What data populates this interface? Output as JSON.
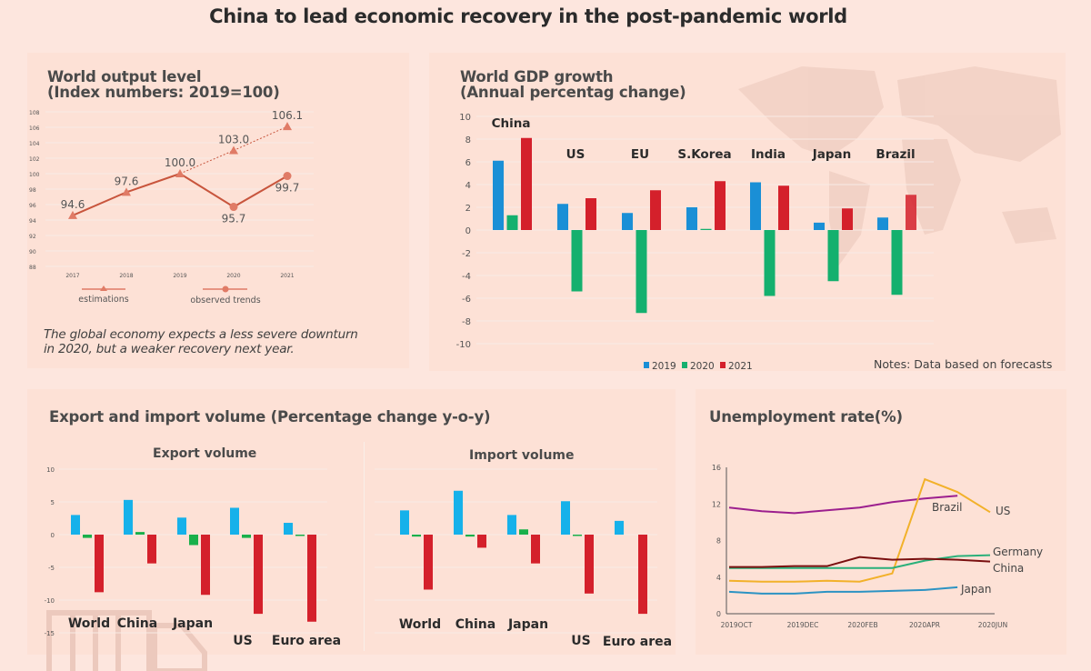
{
  "title": "China to lead economic recovery in the post-pandemic world",
  "colors": {
    "background": "#fde6de",
    "panel": "#fde1d6",
    "output_line": "#c8553d",
    "output_marker": "#e07b66",
    "c2019": "#1a8fd6",
    "c2020": "#14b06e",
    "c2021": "#d4202b",
    "trade_2019": "#16b1ea",
    "trade_2020": "#19b04b",
    "trade_2021": "#d4202b",
    "brazil": "#9c1f8e",
    "us": "#f2b12a",
    "germany": "#2ab07a",
    "china": "#7a0f0f",
    "japan": "#2c93c3"
  },
  "panels": {
    "output": {
      "title_line1": "World output level",
      "title_line2": "(Index numbers: 2019=100)",
      "note_line1": "The global economy expects a less severe downturn",
      "note_line2": "in 2020, but a weaker recovery next year."
    },
    "gdp": {
      "title_line1": "World GDP growth",
      "title_line2": "(Annual percentag change)",
      "note": "Notes: Data based on forecasts"
    },
    "trade": {
      "title": "Export and import volume (Percentage change y-o-y)",
      "export_title": "Export volume",
      "import_title": "Import volume"
    },
    "unemployment": {
      "title": "Unemployment rate(%)"
    }
  },
  "chart_data": [
    {
      "id": "world-output",
      "type": "line",
      "title": "World output level (Index numbers: 2019=100)",
      "x": [
        "2017",
        "2018",
        "2019",
        "2020",
        "2021"
      ],
      "ylim": [
        88,
        108
      ],
      "yticks": [
        88,
        90,
        92,
        94,
        96,
        98,
        100,
        102,
        104,
        106,
        108
      ],
      "grid": true,
      "series": [
        {
          "name": "estimations",
          "marker": "triangle",
          "values": [
            94.6,
            97.6,
            100.0,
            103.0,
            106.1
          ],
          "labels": [
            "94.6",
            "97.6",
            "100.0",
            "103.0",
            "106.1"
          ]
        },
        {
          "name": "observed trends",
          "marker": "circle",
          "values": [
            null,
            null,
            100.0,
            95.7,
            99.7
          ],
          "labels": [
            "",
            "",
            "",
            "95.7",
            "99.7"
          ]
        }
      ],
      "legend": [
        "estimations",
        "observed trends"
      ],
      "legend_position": "bottom"
    },
    {
      "id": "gdp-growth",
      "type": "bar",
      "title": "World GDP growth (Annual percentag change)",
      "categories": [
        "China",
        "US",
        "EU",
        "S.Korea",
        "India",
        "Japan",
        "Brazil"
      ],
      "series": [
        {
          "name": "2019",
          "values": [
            6.1,
            2.3,
            1.5,
            2.0,
            4.2,
            0.65,
            1.1
          ]
        },
        {
          "name": "2020",
          "values": [
            1.3,
            -5.4,
            -7.3,
            0.1,
            -5.8,
            -4.5,
            -5.7
          ]
        },
        {
          "name": "2021",
          "values": [
            8.1,
            2.8,
            3.5,
            4.3,
            3.9,
            1.9,
            3.1
          ]
        }
      ],
      "ylim": [
        -10,
        10
      ],
      "yticks": [
        -10,
        -8,
        -6,
        -4,
        -2,
        0,
        2,
        4,
        6,
        8,
        10
      ],
      "grid": true,
      "legend_position": "bottom"
    },
    {
      "id": "export-volume",
      "type": "bar",
      "title": "Export volume",
      "categories": [
        "World",
        "China",
        "Japan",
        "US",
        "Euro area"
      ],
      "series": [
        {
          "name": "2019",
          "values": [
            3.0,
            5.3,
            2.6,
            4.1,
            1.8
          ]
        },
        {
          "name": "2020",
          "values": [
            -0.5,
            0.4,
            -1.6,
            -0.5,
            -0.2
          ]
        },
        {
          "name": "2021",
          "values": [
            -8.8,
            -4.4,
            -9.2,
            -12.1,
            -13.3
          ]
        }
      ],
      "ylim": [
        -15,
        10
      ],
      "yticks": [
        -15,
        -10,
        -5,
        0,
        5,
        10
      ],
      "grid": true
    },
    {
      "id": "import-volume",
      "type": "bar",
      "title": "Import volume",
      "categories": [
        "World",
        "China",
        "Japan",
        "US",
        "Euro area"
      ],
      "series": [
        {
          "name": "2019",
          "values": [
            3.7,
            6.7,
            3.0,
            5.1,
            2.1
          ]
        },
        {
          "name": "2020",
          "values": [
            -0.3,
            -0.3,
            0.8,
            -0.2,
            0
          ]
        },
        {
          "name": "2021",
          "values": [
            -8.4,
            -2.0,
            -4.4,
            -9.0,
            -12.1
          ]
        }
      ],
      "ylim": [
        -15,
        10
      ],
      "grid": true
    },
    {
      "id": "unemployment",
      "type": "line",
      "title": "Unemployment rate(%)",
      "x": [
        "2019OCT",
        "2019NOV",
        "2019DEC",
        "2020JAN",
        "2020FEB",
        "2020MAR",
        "2020APR",
        "2020MAY",
        "2020JUN"
      ],
      "xtick_labels": [
        "2019OCT",
        "2019DEC",
        "2020FEB",
        "2020APR",
        "2020JUN"
      ],
      "ylim": [
        0,
        16
      ],
      "yticks": [
        0,
        4,
        8,
        12,
        16
      ],
      "series": [
        {
          "name": "Brazil",
          "values": [
            11.6,
            11.2,
            11.0,
            11.3,
            11.6,
            12.2,
            12.6,
            12.9,
            null
          ]
        },
        {
          "name": "US",
          "values": [
            3.6,
            3.5,
            3.5,
            3.6,
            3.5,
            4.4,
            14.7,
            13.3,
            11.1
          ]
        },
        {
          "name": "Germany",
          "values": [
            5.0,
            5.0,
            5.0,
            5.0,
            5.0,
            5.0,
            5.8,
            6.3,
            6.4
          ]
        },
        {
          "name": "China",
          "values": [
            5.1,
            5.1,
            5.2,
            5.2,
            6.2,
            5.9,
            6.0,
            5.9,
            5.7
          ]
        },
        {
          "name": "Japan",
          "values": [
            2.4,
            2.2,
            2.2,
            2.4,
            2.4,
            2.5,
            2.6,
            2.9,
            null
          ]
        }
      ]
    }
  ],
  "gdp_legend": [
    "2019",
    "2020",
    "2021"
  ]
}
